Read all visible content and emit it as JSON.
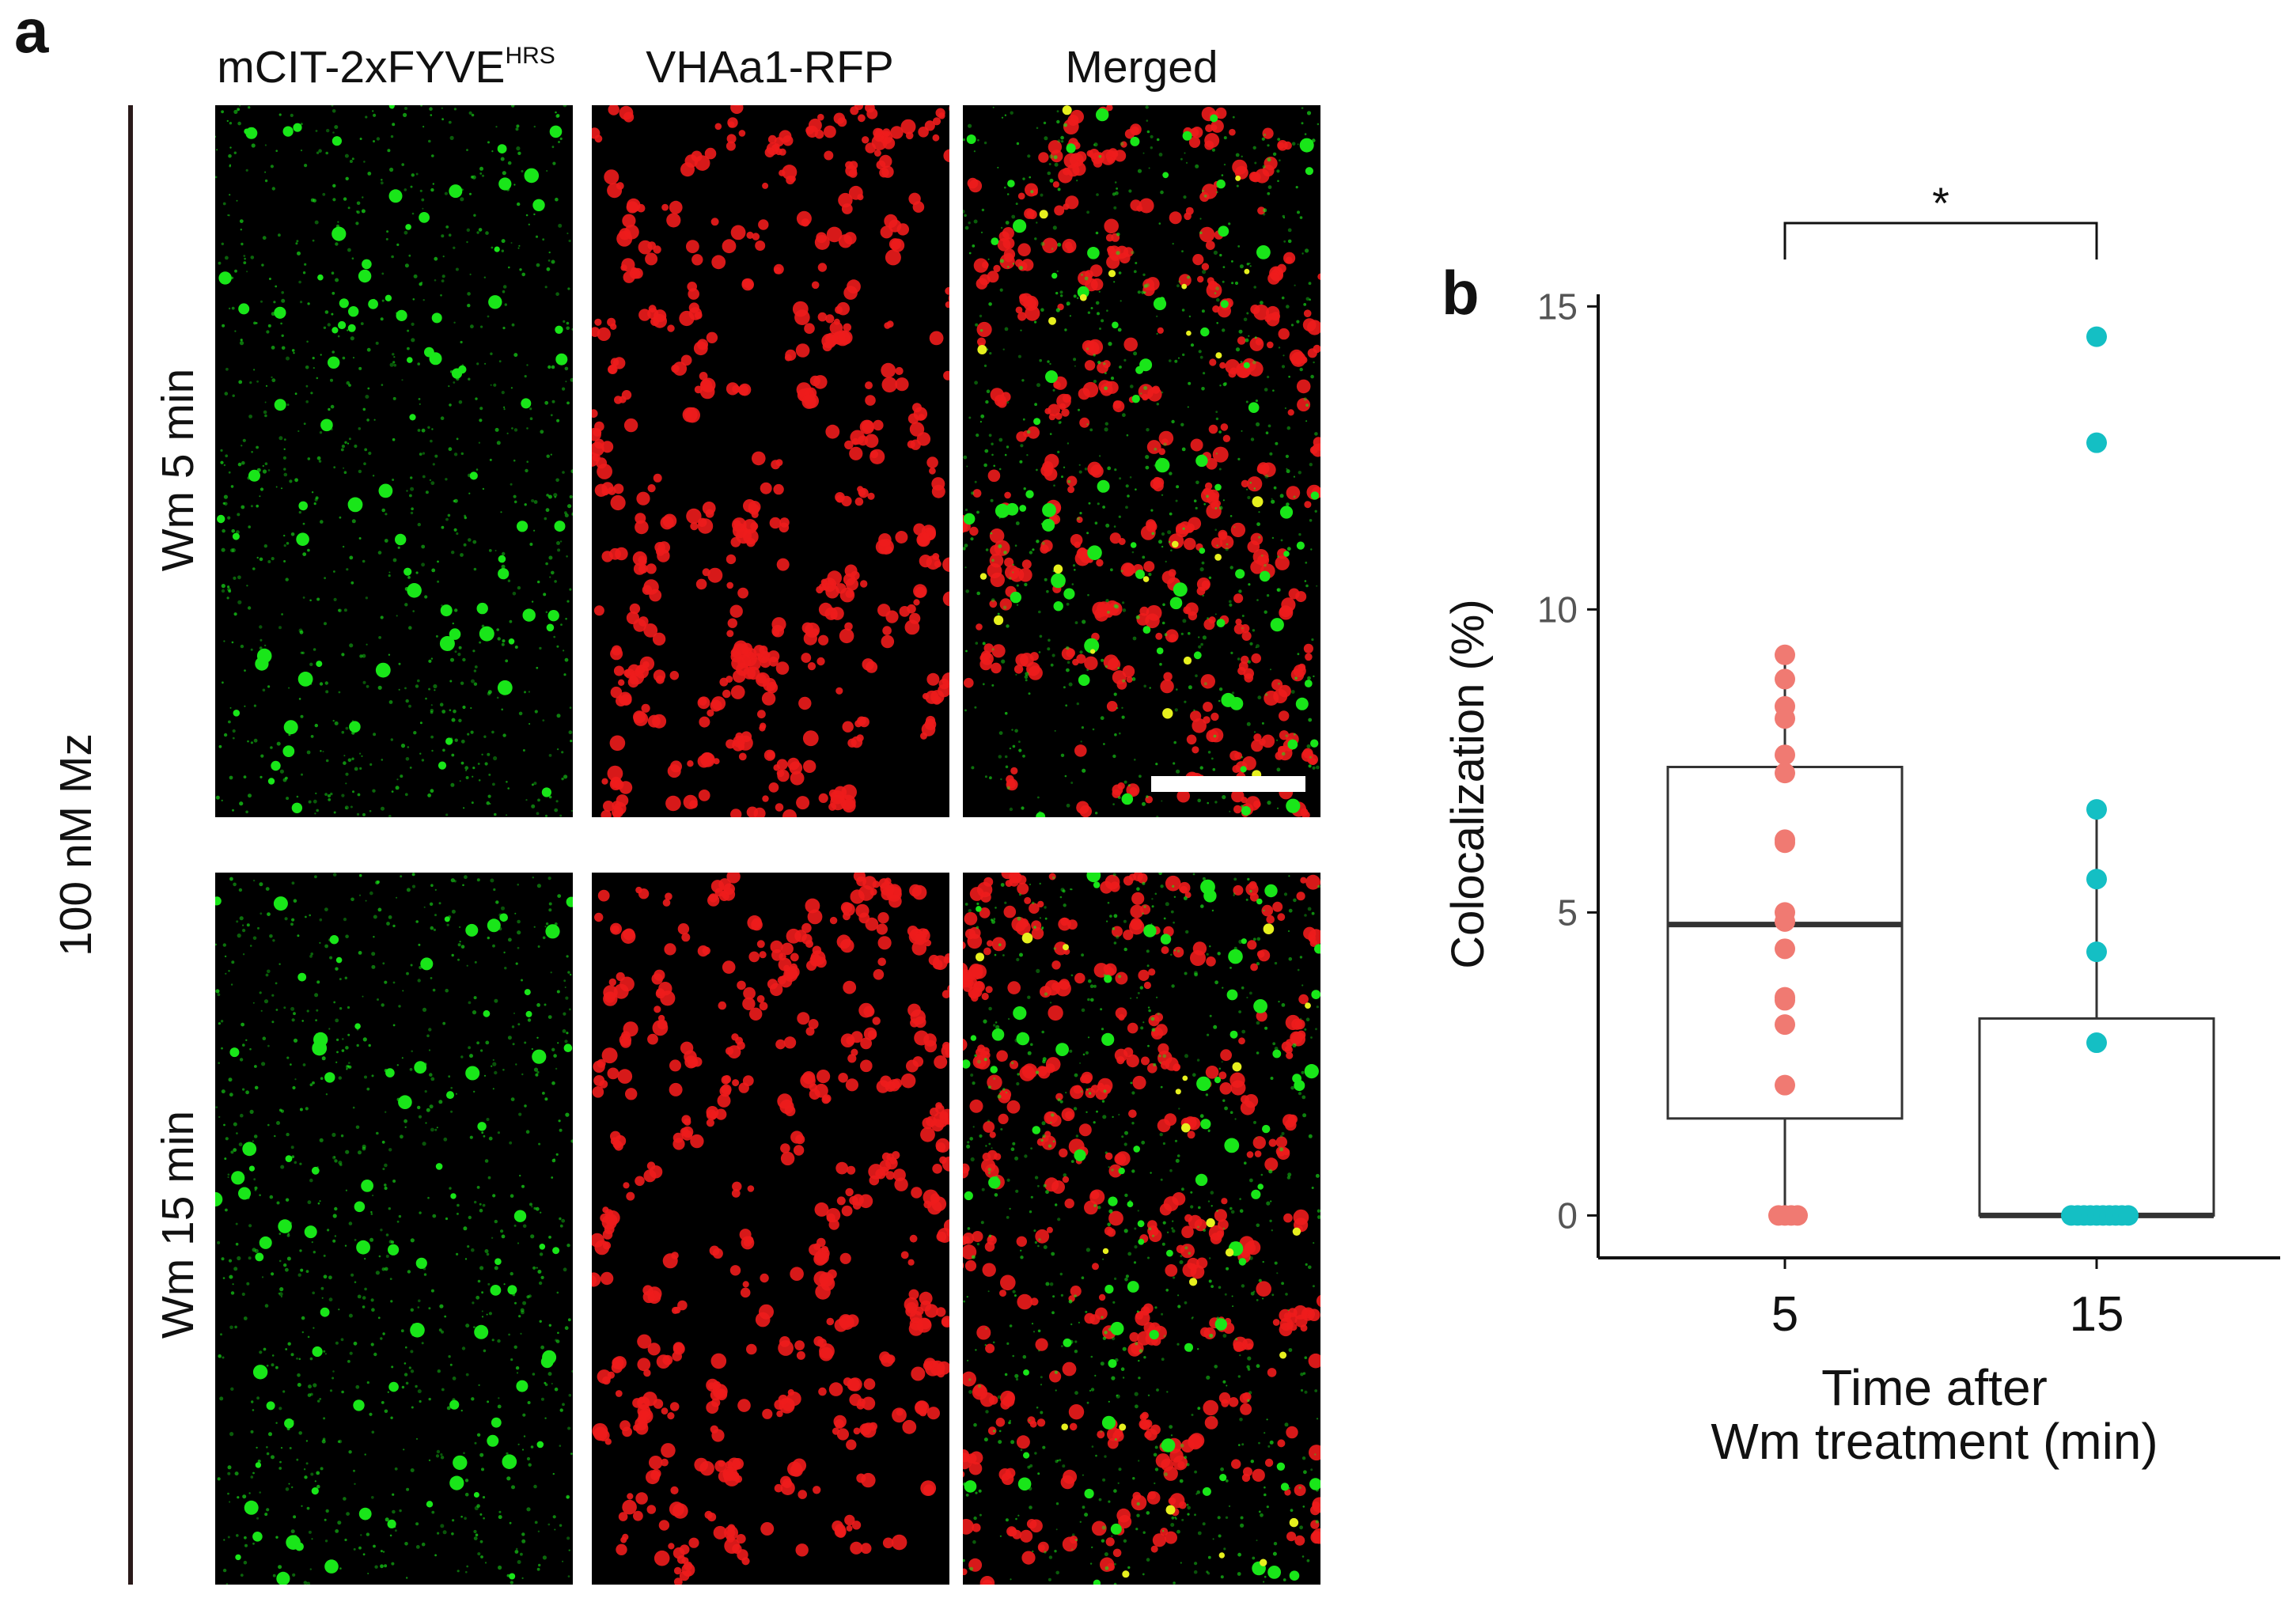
{
  "panel_a": {
    "letter": "a",
    "column_headers": {
      "green_base": "mCIT-2xFYVE",
      "green_sup": "HRS",
      "red": "VHAa1-RFP",
      "merged": "Merged"
    },
    "row_labels": [
      "Wm 5 min",
      "Wm 15 min"
    ],
    "treatment_label": "100 nM Mz",
    "colors": {
      "green": "#19e619",
      "red": "#ee1c1c",
      "yellow": "#e6f01e",
      "background": "#000000",
      "scale_bar": "#ffffff"
    }
  },
  "panel_b": {
    "letter": "b"
  },
  "chart_data": {
    "type": "box",
    "categories": [
      "5",
      "15"
    ],
    "xlabel_lines": [
      "Time after",
      "Wm treatment (min)"
    ],
    "ylabel": "Colocalization (%)",
    "ylim": [
      -0.7,
      15.2
    ],
    "yticks": [
      0,
      5,
      10,
      15
    ],
    "grid": false,
    "legend": "none",
    "significance": {
      "between": [
        "5",
        "15"
      ],
      "label": "*"
    },
    "series": [
      {
        "category": "5",
        "color": "#f07a72",
        "box": {
          "q1": 1.6,
          "median": 4.8,
          "q3": 7.4,
          "whisker_low": 0,
          "whisker_high": 9.3
        },
        "points": [
          9.25,
          8.85,
          8.4,
          8.2,
          7.6,
          7.3,
          6.2,
          6.15,
          5.0,
          4.85,
          4.4,
          3.6,
          3.55,
          3.15,
          2.15,
          0,
          0,
          0,
          0
        ]
      },
      {
        "category": "15",
        "color": "#14bfc4",
        "box": {
          "q1": 0,
          "median": 0,
          "q3": 3.25,
          "whisker_low": 0,
          "whisker_high": 6.7
        },
        "points": [
          14.5,
          12.75,
          6.7,
          5.55,
          4.35,
          2.85,
          0,
          0,
          0,
          0,
          0,
          0,
          0,
          0,
          0,
          0
        ]
      }
    ]
  }
}
